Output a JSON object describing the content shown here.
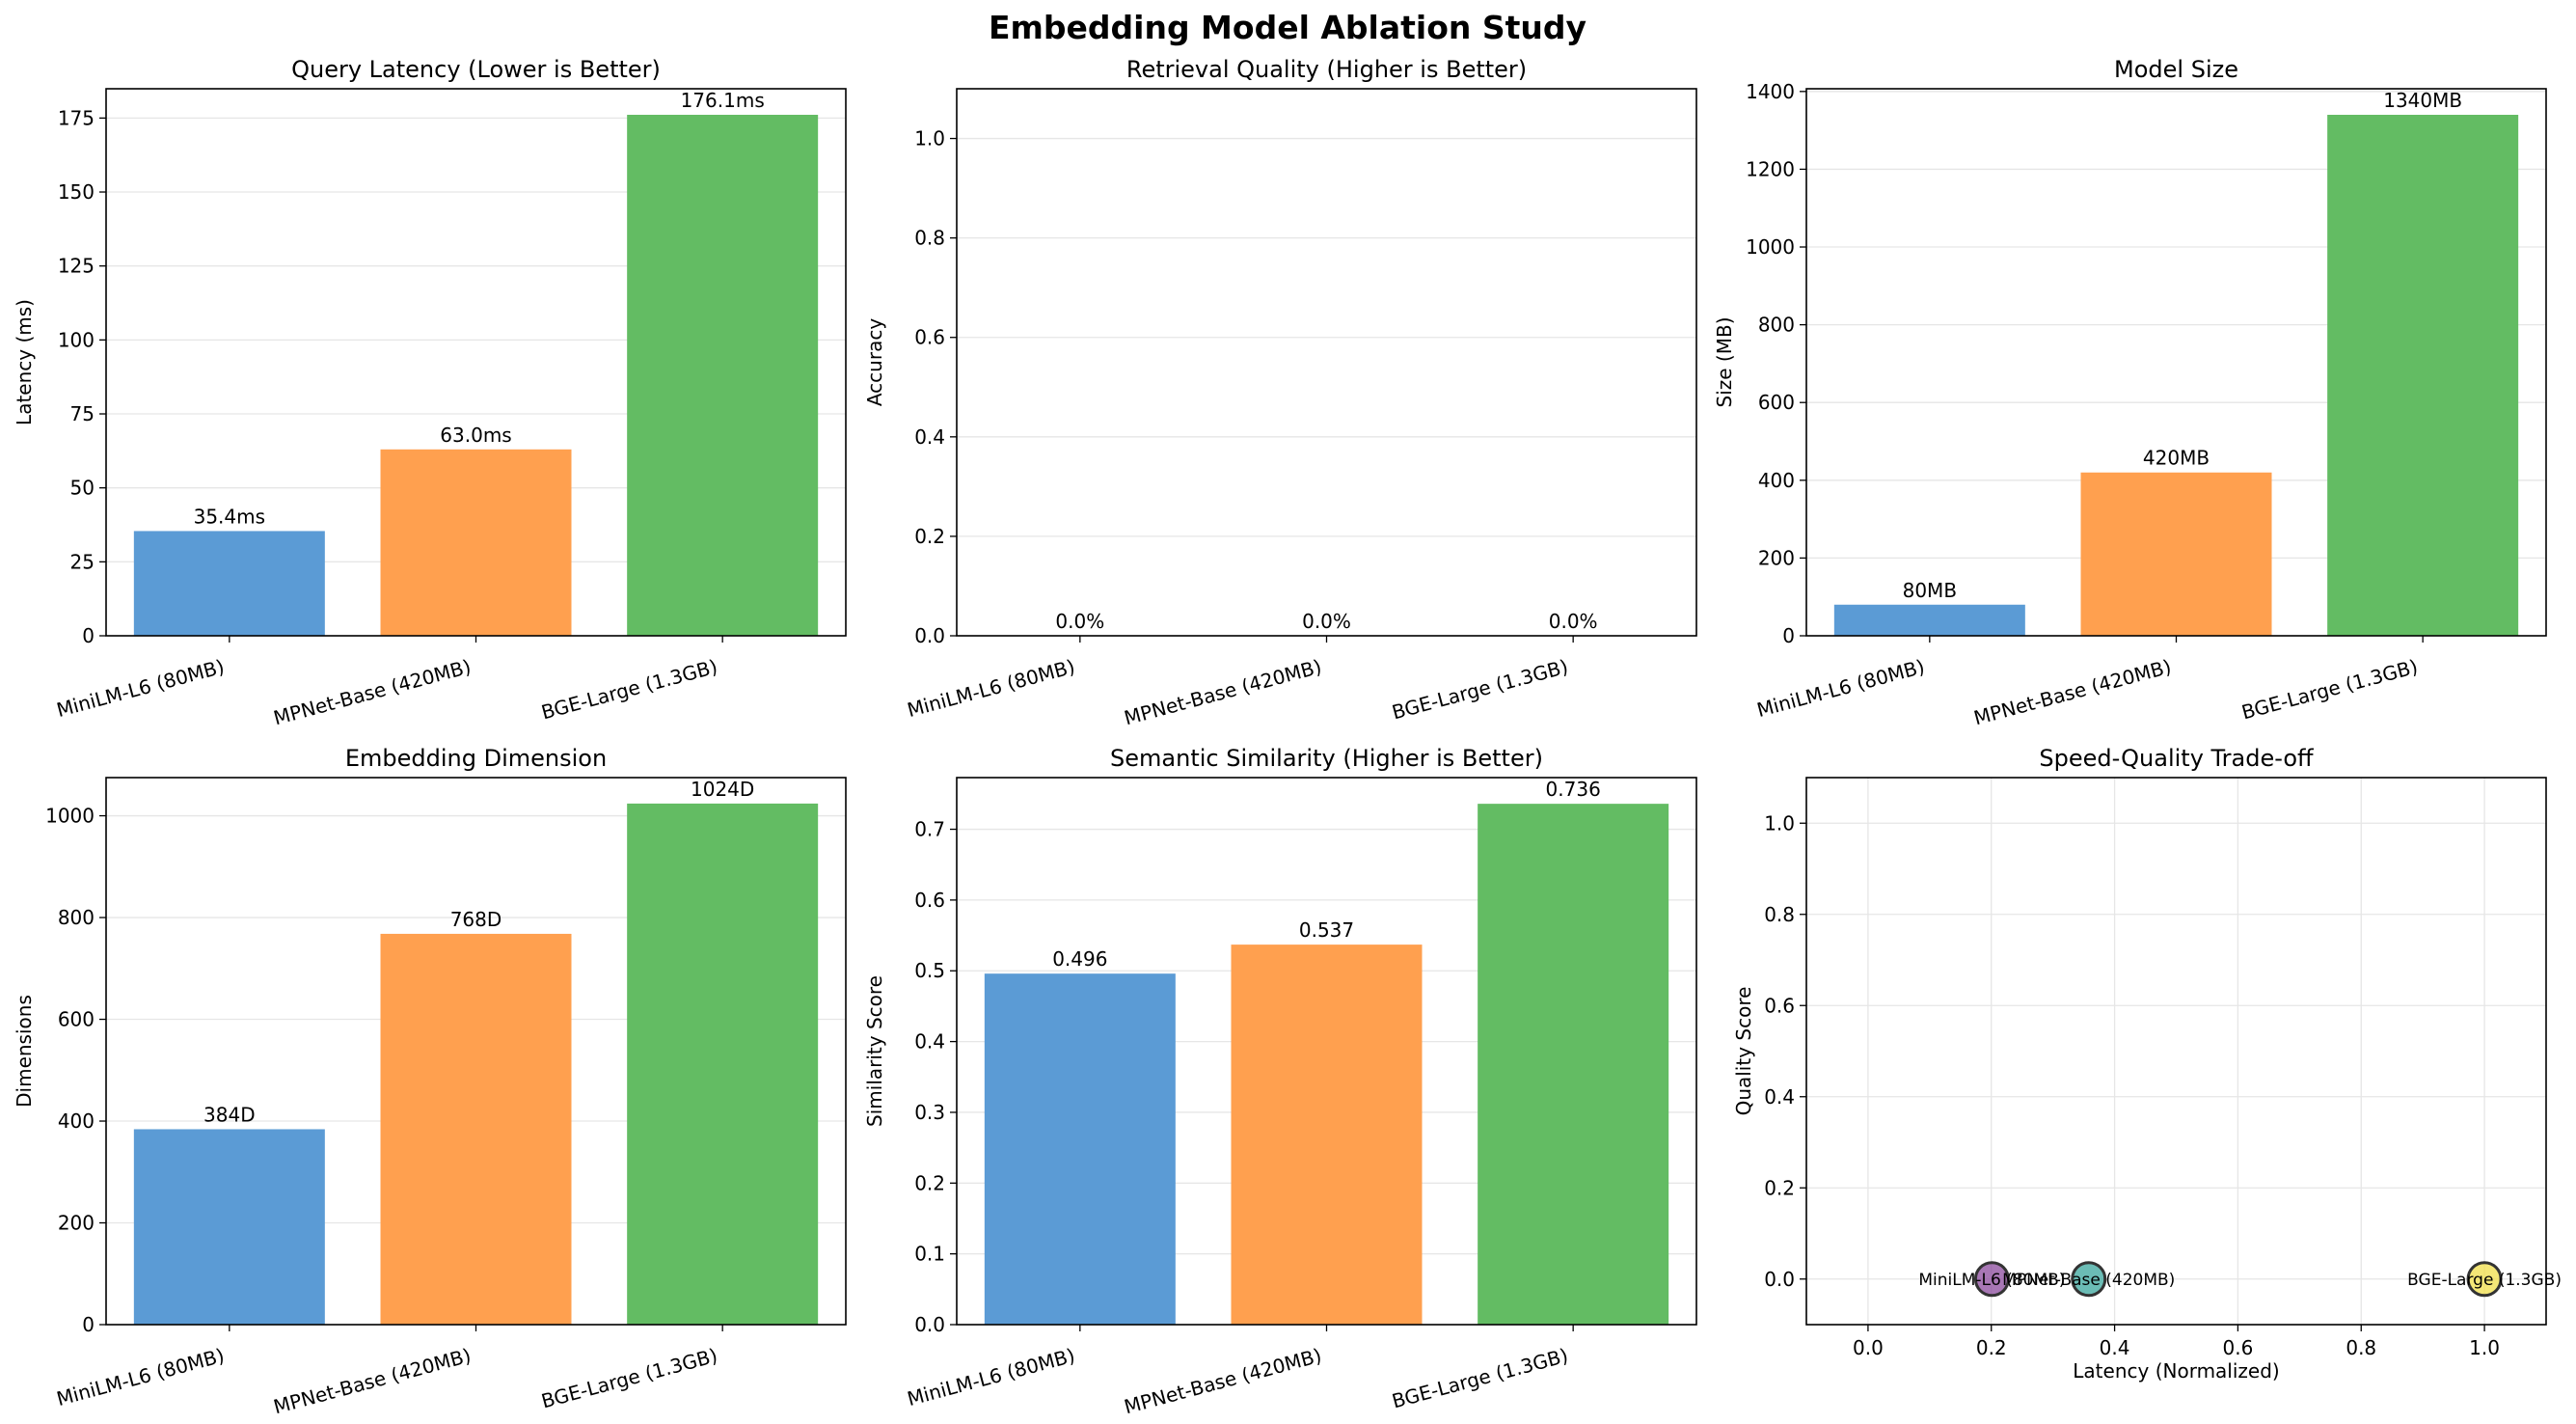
{
  "figure": {
    "title": "Embedding Model Ablation Study"
  },
  "colors": {
    "blue": "#5b9bd5",
    "orange": "#ffa04f",
    "green": "#63bc63",
    "frame": "#000000",
    "grid": "#e6e6e6"
  },
  "chart_data": [
    {
      "id": "latency",
      "type": "bar",
      "title": "Query Latency (Lower is Better)",
      "ylabel": "Latency (ms)",
      "categories": [
        "MiniLM-L6 (80MB)",
        "MPNet-Base (420MB)",
        "BGE-Large (1.3GB)"
      ],
      "values": [
        35.4,
        63.0,
        176.1
      ],
      "value_labels": [
        "35.4ms",
        "63.0ms",
        "176.1ms"
      ],
      "colors": [
        "#5b9bd5",
        "#ffa04f",
        "#63bc63"
      ],
      "ylim": [
        0,
        184.9
      ],
      "yticks": [
        0,
        25,
        50,
        75,
        100,
        125,
        150,
        175
      ],
      "ytick_labels": [
        "0",
        "25",
        "50",
        "75",
        "100",
        "125",
        "150",
        "175"
      ],
      "grid": "y"
    },
    {
      "id": "quality",
      "type": "bar",
      "title": "Retrieval Quality (Higher is Better)",
      "ylabel": "Accuracy",
      "categories": [
        "MiniLM-L6 (80MB)",
        "MPNet-Base (420MB)",
        "BGE-Large (1.3GB)"
      ],
      "values": [
        0.0,
        0.0,
        0.0
      ],
      "value_labels": [
        "0.0%",
        "0.0%",
        "0.0%"
      ],
      "colors": [
        "#5b9bd5",
        "#ffa04f",
        "#63bc63"
      ],
      "ylim": [
        0,
        1.1
      ],
      "yticks": [
        0,
        0.2,
        0.4,
        0.6,
        0.8,
        1.0
      ],
      "ytick_labels": [
        "0.0",
        "0.2",
        "0.4",
        "0.6",
        "0.8",
        "1.0"
      ],
      "grid": "y"
    },
    {
      "id": "size",
      "type": "bar",
      "title": "Model Size",
      "ylabel": "Size (MB)",
      "categories": [
        "MiniLM-L6 (80MB)",
        "MPNet-Base (420MB)",
        "BGE-Large (1.3GB)"
      ],
      "values": [
        80,
        420,
        1340
      ],
      "value_labels": [
        "80MB",
        "420MB",
        "1340MB"
      ],
      "colors": [
        "#5b9bd5",
        "#ffa04f",
        "#63bc63"
      ],
      "ylim": [
        0,
        1407
      ],
      "yticks": [
        0,
        200,
        400,
        600,
        800,
        1000,
        1200,
        1400
      ],
      "ytick_labels": [
        "0",
        "200",
        "400",
        "600",
        "800",
        "1000",
        "1200",
        "1400"
      ],
      "grid": "y"
    },
    {
      "id": "dims",
      "type": "bar",
      "title": "Embedding Dimension",
      "ylabel": "Dimensions",
      "categories": [
        "MiniLM-L6 (80MB)",
        "MPNet-Base (420MB)",
        "BGE-Large (1.3GB)"
      ],
      "values": [
        384,
        768,
        1024
      ],
      "value_labels": [
        "384D",
        "768D",
        "1024D"
      ],
      "colors": [
        "#5b9bd5",
        "#ffa04f",
        "#63bc63"
      ],
      "ylim": [
        0,
        1075
      ],
      "yticks": [
        0,
        200,
        400,
        600,
        800,
        1000
      ],
      "ytick_labels": [
        "0",
        "200",
        "400",
        "600",
        "800",
        "1000"
      ],
      "grid": "y"
    },
    {
      "id": "similarity",
      "type": "bar",
      "title": "Semantic Similarity (Higher is Better)",
      "ylabel": "Similarity Score",
      "categories": [
        "MiniLM-L6 (80MB)",
        "MPNet-Base (420MB)",
        "BGE-Large (1.3GB)"
      ],
      "values": [
        0.496,
        0.537,
        0.736
      ],
      "value_labels": [
        "0.496",
        "0.537",
        "0.736"
      ],
      "colors": [
        "#5b9bd5",
        "#ffa04f",
        "#63bc63"
      ],
      "ylim": [
        0,
        0.773
      ],
      "yticks": [
        0,
        0.1,
        0.2,
        0.3,
        0.4,
        0.5,
        0.6,
        0.7
      ],
      "ytick_labels": [
        "0.0",
        "0.1",
        "0.2",
        "0.3",
        "0.4",
        "0.5",
        "0.6",
        "0.7"
      ],
      "grid": "y"
    },
    {
      "id": "tradeoff",
      "type": "scatter",
      "title": "Speed-Quality Trade-off",
      "xlabel": "Latency (Normalized)",
      "ylabel": "Quality Score",
      "points": [
        {
          "label": "MiniLM-L6 (80MB)",
          "x": 0.201,
          "y": 0.0,
          "color": "#8b4a9c"
        },
        {
          "label": "MPNet-Base (420MB)",
          "x": 0.358,
          "y": 0.0,
          "color": "#3aa59c"
        },
        {
          "label": "BGE-Large (1.3GB)",
          "x": 1.0,
          "y": 0.0,
          "color": "#f0df4a"
        }
      ],
      "xlim": [
        -0.1,
        1.1
      ],
      "ylim": [
        -0.1,
        1.1
      ],
      "xticks": [
        0,
        0.2,
        0.4,
        0.6,
        0.8,
        1.0
      ],
      "xtick_labels": [
        "0.0",
        "0.2",
        "0.4",
        "0.6",
        "0.8",
        "1.0"
      ],
      "yticks": [
        0,
        0.2,
        0.4,
        0.6,
        0.8,
        1.0
      ],
      "ytick_labels": [
        "0.0",
        "0.2",
        "0.4",
        "0.6",
        "0.8",
        "1.0"
      ],
      "grid": "both"
    }
  ]
}
